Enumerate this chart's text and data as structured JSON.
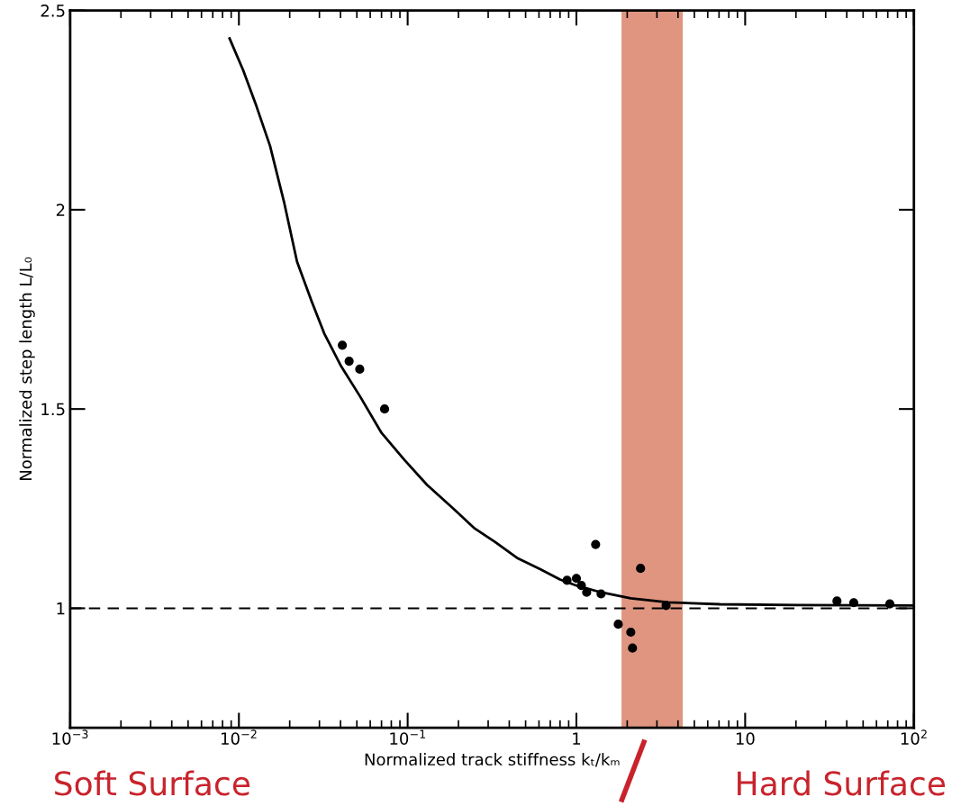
{
  "chart_data": {
    "type": "scatter",
    "xlabel": "Normalized track stiffness kₜ/kₘ",
    "ylabel": "Normalized step length L/L₀",
    "log": "x",
    "xlim": [
      0.001,
      100
    ],
    "ylim": [
      0.7,
      2.5
    ],
    "xticks": [
      {
        "value": 0.001,
        "label": "10$^{−3}$"
      },
      {
        "value": 0.01,
        "label": "10$^{−2}$"
      },
      {
        "value": 0.1,
        "label": "10$^{−1}$"
      },
      1,
      10,
      {
        "value": 100,
        "label": "10$^{2}$"
      }
    ],
    "yticks": [
      1,
      1.5,
      2,
      2.5
    ],
    "grid": false,
    "legend": false,
    "series": [
      {
        "type": "line",
        "color": "#000000",
        "line_style": "solid",
        "marker": "none",
        "x": [
          0.0088,
          0.0106,
          0.0127,
          0.0153,
          0.0185,
          0.0221,
          0.027,
          0.032,
          0.04,
          0.0525,
          0.07,
          0.0967,
          0.13,
          0.179,
          0.25,
          0.33,
          0.45,
          0.61,
          0.8,
          1,
          1.4,
          2.1,
          3.5,
          7.1,
          20,
          100
        ],
        "values": [
          2.43,
          2.35,
          2.26,
          2.16,
          2.02,
          1.87,
          1.77,
          1.69,
          1.61,
          1.53,
          1.44,
          1.37,
          1.31,
          1.257,
          1.2,
          1.166,
          1.125,
          1.098,
          1.072,
          1.057,
          1.04,
          1.025,
          1.015,
          1.01,
          1.008,
          1.007
        ]
      },
      {
        "color": "#000000",
        "marker": "circle",
        "x": [
          0.041,
          0.045,
          0.052,
          0.073,
          0.88,
          1.0,
          1.07,
          1.15,
          1.3,
          1.4,
          1.77,
          2.1,
          2.15,
          2.4,
          3.4,
          35,
          44,
          72
        ],
        "values": [
          1.66,
          1.62,
          1.6,
          1.5,
          1.07,
          1.075,
          1.057,
          1.04,
          1.16,
          1.036,
          0.96,
          0.94,
          0.9,
          1.1,
          1.007,
          1.018,
          1.014,
          1.011
        ]
      }
    ],
    "ref_lines": [
      {
        "axis": "y",
        "value": 1,
        "line_style": "dashed",
        "color": "#000000"
      }
    ],
    "bands": [
      {
        "axis": "x",
        "from": 1.85,
        "to": 4.27,
        "color": "#d9826a"
      }
    ],
    "annotations": [
      "Soft Surface",
      "Hard Surface"
    ]
  }
}
